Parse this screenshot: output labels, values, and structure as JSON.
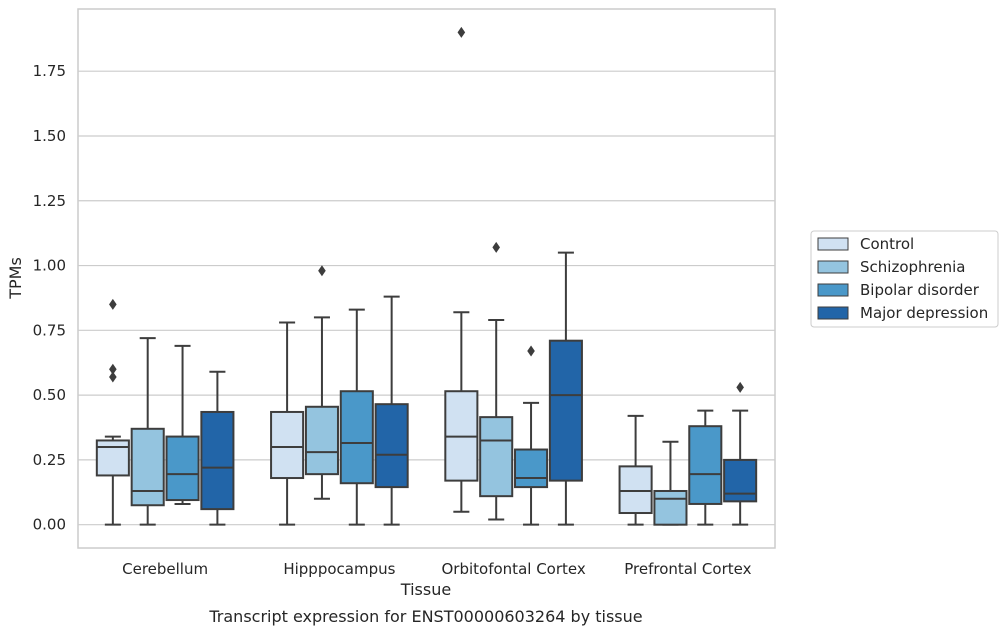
{
  "chart_data": {
    "type": "box",
    "caption": "Transcript expression for ENST00000603264 by tissue",
    "xlabel": "Tissue",
    "ylabel": "TPMs",
    "ylim": [
      -0.09,
      1.99
    ],
    "yticks": [
      0.0,
      0.25,
      0.5,
      0.75,
      1.0,
      1.25,
      1.5,
      1.75
    ],
    "ytick_labels": [
      "0.00",
      "0.25",
      "0.50",
      "0.75",
      "1.00",
      "1.25",
      "1.50",
      "1.75"
    ],
    "grid": "horizontal",
    "legend_position": "right",
    "categories": [
      "Cerebellum",
      "Hipppocampus",
      "Orbitofontal Cortex",
      "Prefrontal Cortex"
    ],
    "series": [
      {
        "name": "Control",
        "color": "#d0e1f2",
        "boxes": [
          {
            "whisker_low": 0.0,
            "q1": 0.19,
            "median": 0.3,
            "q3": 0.325,
            "whisker_high": 0.34,
            "outliers": [
              0.57,
              0.6,
              0.85
            ]
          },
          {
            "whisker_low": 0.0,
            "q1": 0.18,
            "median": 0.3,
            "q3": 0.435,
            "whisker_high": 0.78,
            "outliers": []
          },
          {
            "whisker_low": 0.05,
            "q1": 0.17,
            "median": 0.34,
            "q3": 0.515,
            "whisker_high": 0.82,
            "outliers": [
              1.9
            ]
          },
          {
            "whisker_low": 0.0,
            "q1": 0.045,
            "median": 0.13,
            "q3": 0.225,
            "whisker_high": 0.42,
            "outliers": []
          }
        ]
      },
      {
        "name": "Schizophrenia",
        "color": "#94c4df",
        "boxes": [
          {
            "whisker_low": 0.0,
            "q1": 0.075,
            "median": 0.13,
            "q3": 0.37,
            "whisker_high": 0.72,
            "outliers": []
          },
          {
            "whisker_low": 0.1,
            "q1": 0.195,
            "median": 0.28,
            "q3": 0.455,
            "whisker_high": 0.8,
            "outliers": [
              0.98
            ]
          },
          {
            "whisker_low": 0.02,
            "q1": 0.11,
            "median": 0.325,
            "q3": 0.415,
            "whisker_high": 0.79,
            "outliers": [
              1.07
            ]
          },
          {
            "whisker_low": 0.0,
            "q1": 0.0,
            "median": 0.1,
            "q3": 0.13,
            "whisker_high": 0.32,
            "outliers": []
          }
        ]
      },
      {
        "name": "Bipolar disorder",
        "color": "#4a98c9",
        "boxes": [
          {
            "whisker_low": 0.08,
            "q1": 0.095,
            "median": 0.195,
            "q3": 0.34,
            "whisker_high": 0.69,
            "outliers": []
          },
          {
            "whisker_low": 0.0,
            "q1": 0.16,
            "median": 0.315,
            "q3": 0.515,
            "whisker_high": 0.83,
            "outliers": []
          },
          {
            "whisker_low": 0.0,
            "q1": 0.145,
            "median": 0.18,
            "q3": 0.29,
            "whisker_high": 0.47,
            "outliers": [
              0.67
            ]
          },
          {
            "whisker_low": 0.0,
            "q1": 0.08,
            "median": 0.195,
            "q3": 0.38,
            "whisker_high": 0.44,
            "outliers": []
          }
        ]
      },
      {
        "name": "Major depression",
        "color": "#2265a8",
        "boxes": [
          {
            "whisker_low": 0.0,
            "q1": 0.06,
            "median": 0.22,
            "q3": 0.435,
            "whisker_high": 0.59,
            "outliers": []
          },
          {
            "whisker_low": 0.0,
            "q1": 0.145,
            "median": 0.27,
            "q3": 0.465,
            "whisker_high": 0.88,
            "outliers": []
          },
          {
            "whisker_low": 0.0,
            "q1": 0.17,
            "median": 0.5,
            "q3": 0.71,
            "whisker_high": 1.05,
            "outliers": []
          },
          {
            "whisker_low": 0.0,
            "q1": 0.09,
            "median": 0.12,
            "q3": 0.25,
            "whisker_high": 0.44,
            "outliers": [
              0.53
            ]
          }
        ]
      }
    ]
  }
}
